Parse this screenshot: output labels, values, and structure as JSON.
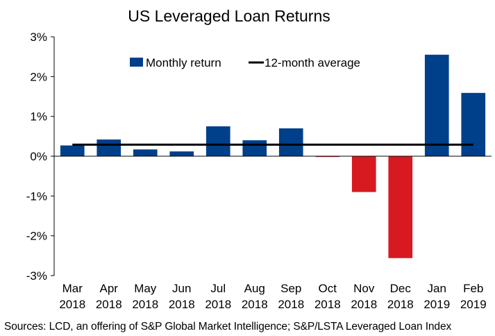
{
  "chart_data": {
    "type": "bar",
    "title": "US Leveraged Loan Returns",
    "xlabel": "",
    "ylabel": "",
    "categories": [
      "Mar 2018",
      "Apr 2018",
      "May 2018",
      "Jun 2018",
      "Jul 2018",
      "Aug 2018",
      "Sep 2018",
      "Oct 2018",
      "Nov 2018",
      "Dec 2018",
      "Jan 2019",
      "Feb 2019"
    ],
    "category_lines": [
      [
        "Mar",
        "2018"
      ],
      [
        "Apr",
        "2018"
      ],
      [
        "May",
        "2018"
      ],
      [
        "Jun",
        "2018"
      ],
      [
        "Jul",
        "2018"
      ],
      [
        "Aug",
        "2018"
      ],
      [
        "Sep",
        "2018"
      ],
      [
        "Oct",
        "2018"
      ],
      [
        "Nov",
        "2018"
      ],
      [
        "Dec",
        "2018"
      ],
      [
        "Jan",
        "2019"
      ],
      [
        "Feb",
        "2019"
      ]
    ],
    "series": [
      {
        "name": "Monthly return",
        "type": "bar",
        "values": [
          0.27,
          0.42,
          0.17,
          0.12,
          0.75,
          0.4,
          0.7,
          -0.02,
          -0.9,
          -2.56,
          2.55,
          1.59
        ]
      },
      {
        "name": "12-month average",
        "type": "line",
        "values": [
          0.29,
          0.29,
          0.29,
          0.29,
          0.29,
          0.29,
          0.29,
          0.29,
          0.29,
          0.29,
          0.29,
          0.29
        ]
      }
    ],
    "ylim": [
      -3,
      3
    ],
    "yticks": [
      3,
      2,
      1,
      0,
      -1,
      -2,
      -3
    ],
    "ytick_labels": [
      "3%",
      "2%",
      "1%",
      "0%",
      "-1%",
      "-2%",
      "-3%"
    ],
    "grid": false,
    "legend_position": "top"
  },
  "colors": {
    "positive": "#003f8a",
    "negative": "#d71920",
    "average_line": "#000000",
    "axis": "#000000"
  },
  "source": "Sources: LCD, an offering of S&P Global Market Intelligence; S&P/LSTA Leveraged Loan Index"
}
